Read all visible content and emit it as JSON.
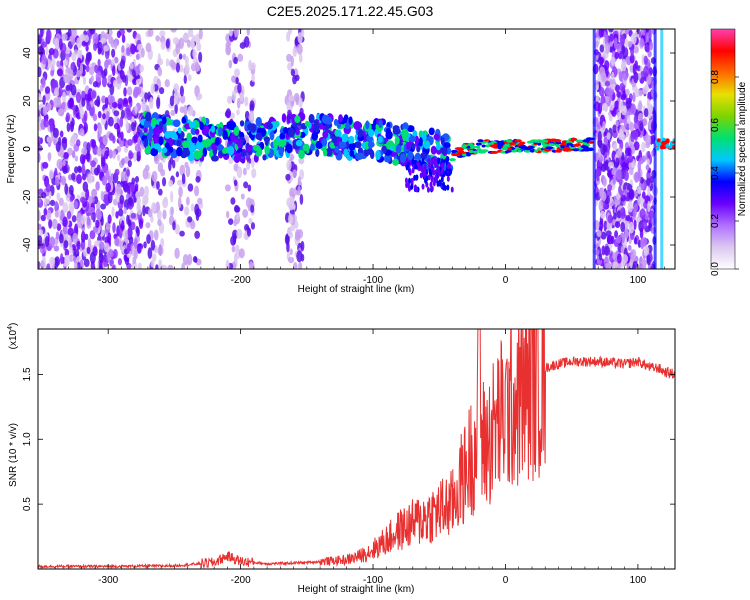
{
  "title": "C2E5.2025.171.22.45.G03",
  "chart_data": [
    {
      "type": "heatmap",
      "xlabel": "Height of straight line (km)",
      "ylabel": "Frequency (Hz)",
      "xlim": [
        -353,
        128
      ],
      "ylim": [
        -50,
        50
      ],
      "xticks": [
        -300,
        -200,
        -100,
        0,
        100
      ],
      "yticks": [
        -40,
        -20,
        0,
        20,
        40
      ],
      "colorbar": {
        "label": "Normalized spectral amplitude",
        "range": [
          0,
          1
        ],
        "ticks": [
          0.0,
          0.2,
          0.4,
          0.6,
          0.8
        ],
        "colors": [
          "#ffffff",
          "#dcc8f0",
          "#b070ff",
          "#6a00ff",
          "#0000ff",
          "#00c8ff",
          "#00e070",
          "#7cd400",
          "#e8e000",
          "#ff6a00",
          "#ff0000",
          "#ff40b0"
        ]
      },
      "signal_track": {
        "description_points": [
          {
            "x": -275,
            "y": 7
          },
          {
            "x": -250,
            "y": 5
          },
          {
            "x": -200,
            "y": 3
          },
          {
            "x": -150,
            "y": 6
          },
          {
            "x": -100,
            "y": 4
          },
          {
            "x": -60,
            "y": 0
          },
          {
            "x": -40,
            "y": -2
          },
          {
            "x": -20,
            "y": 1
          },
          {
            "x": 0,
            "y": 1
          },
          {
            "x": 40,
            "y": 1.5
          },
          {
            "x": 65,
            "y": 2
          }
        ]
      }
    },
    {
      "type": "line",
      "xlabel": "Height of straight line (km)",
      "ylabel": "SNR (10 * v/v)",
      "y_multiplier_label": "(x10",
      "y_multiplier_exp": "4",
      "y_multiplier_close": ")",
      "xlim": [
        -353,
        128
      ],
      "ylim": [
        0,
        1.85
      ],
      "xticks": [
        -300,
        -200,
        -100,
        0,
        100
      ],
      "yticks": [
        0.5,
        1.0,
        1.5
      ],
      "ytick_labels": [
        "0.5",
        "1.0",
        "1.5"
      ],
      "color": "#e83030",
      "series": [
        {
          "x": [
            -353,
            -300,
            -250,
            -220,
            -210,
            -200,
            -180,
            -150,
            -120,
            -110,
            -100,
            -90,
            -80,
            -70,
            -60,
            -50,
            -40,
            -35,
            -30,
            -25,
            -20,
            -15,
            -10,
            -5,
            0,
            5,
            10,
            15,
            20,
            25,
            30,
            40,
            50,
            60,
            70,
            80,
            90,
            100,
            110,
            115,
            120,
            128
          ],
          "y": [
            0.02,
            0.02,
            0.025,
            0.05,
            0.1,
            0.06,
            0.04,
            0.05,
            0.07,
            0.1,
            0.15,
            0.22,
            0.3,
            0.35,
            0.4,
            0.45,
            0.5,
            0.65,
            0.75,
            0.9,
            1.0,
            0.95,
            1.05,
            1.15,
            1.2,
            1.28,
            1.33,
            1.4,
            1.47,
            1.52,
            1.55,
            1.58,
            1.6,
            1.6,
            1.6,
            1.59,
            1.58,
            1.6,
            1.55,
            1.55,
            1.52,
            1.5
          ]
        }
      ]
    }
  ]
}
